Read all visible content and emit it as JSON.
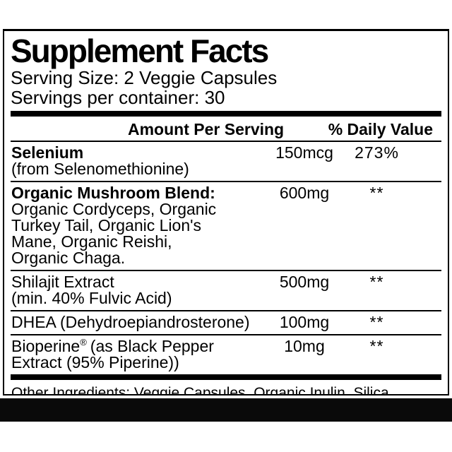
{
  "label": {
    "title": "Supplement Facts",
    "serving_size": "Serving Size: 2 Veggie Capsules",
    "servings_per_container": "Servings per container: 30",
    "columns": {
      "amount_header": "Amount Per Serving",
      "daily_value_header": "% Daily Value"
    },
    "rows": [
      {
        "name_bold": "Selenium",
        "name_lines": [
          "(from Selenomethionine)"
        ],
        "amount": "150mcg",
        "daily_value": "273%"
      },
      {
        "name_bold": "Organic Mushroom Blend:",
        "name_lines": [
          "Organic Cordyceps, Organic",
          "Turkey Tail, Organic Lion's",
          "Mane, Organic Reishi,",
          "Organic Chaga."
        ],
        "amount": "600mg",
        "daily_value": "**"
      },
      {
        "name_bold": "",
        "name_lines": [
          "Shilajit Extract",
          "(min. 40% Fulvic Acid)"
        ],
        "amount": "500mg",
        "daily_value": "**"
      },
      {
        "name_bold": "",
        "name_lines": [
          "DHEA (Dehydroepiandrosterone)"
        ],
        "amount": "100mg",
        "daily_value": "**"
      },
      {
        "name_brand": "Bioperine",
        "name_reg": "®",
        "name_lines": [
          "(as Black Pepper",
          "Extract (95% Piperine))"
        ],
        "amount": "10mg",
        "daily_value": "**"
      }
    ],
    "other_ingredients": "Other Ingredients: Veggie Capsules, Organic Inulin, Silica.",
    "colors": {
      "text": "#000000",
      "background": "#ffffff",
      "bar": "#0a0a0a"
    }
  }
}
